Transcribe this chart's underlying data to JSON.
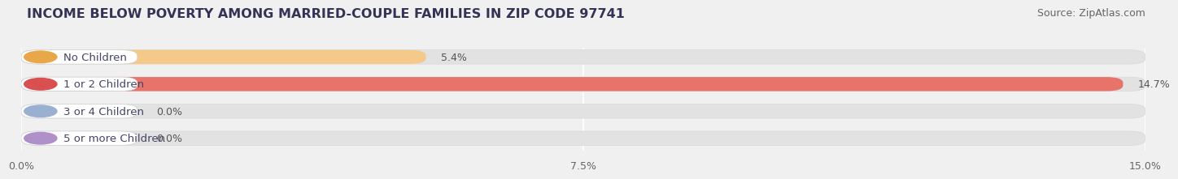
{
  "title": "INCOME BELOW POVERTY AMONG MARRIED-COUPLE FAMILIES IN ZIP CODE 97741",
  "source": "Source: ZipAtlas.com",
  "categories": [
    "No Children",
    "1 or 2 Children",
    "3 or 4 Children",
    "5 or more Children"
  ],
  "values": [
    5.4,
    14.7,
    0.0,
    0.0
  ],
  "bar_colors": [
    "#f5c98a",
    "#e8736a",
    "#a8b8d8",
    "#c8b0d8"
  ],
  "dot_colors": [
    "#e8a84a",
    "#d95050",
    "#9ab0d0",
    "#b090c8"
  ],
  "xlim": [
    0,
    15.0
  ],
  "xticks": [
    0.0,
    7.5,
    15.0
  ],
  "xtick_labels": [
    "0.0%",
    "7.5%",
    "15.0%"
  ],
  "background_color": "#f0f0f0",
  "bar_background_color": "#e2e2e2",
  "label_box_color": "#ffffff",
  "title_fontsize": 11.5,
  "source_fontsize": 9,
  "tick_fontsize": 9,
  "label_fontsize": 9.5,
  "value_fontsize": 9,
  "bar_height": 0.52,
  "label_text_color": "#444466"
}
